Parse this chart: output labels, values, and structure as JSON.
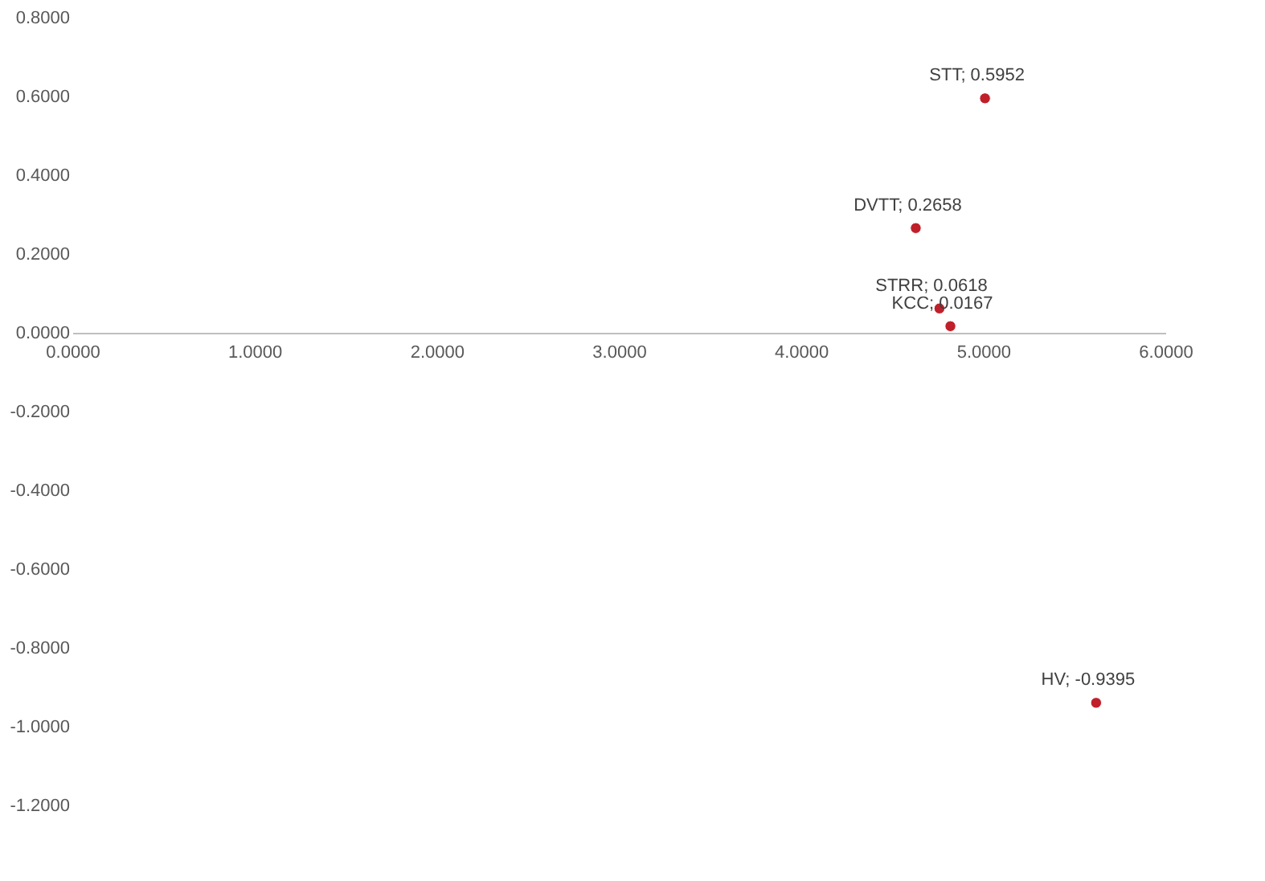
{
  "chart_data": {
    "type": "scatter",
    "x": [
      4.63,
      5.01,
      4.76,
      4.82,
      5.62
    ],
    "series": [
      {
        "color": "#c0202a",
        "values": [
          0.2658,
          0.5952,
          0.0618,
          0.0167,
          -0.9395
        ]
      }
    ],
    "annotations": [
      {
        "text": "DVTT; 0.2658",
        "x": 4.63,
        "y": 0.2658
      },
      {
        "text": "STT; 0.5952",
        "x": 5.01,
        "y": 0.5952
      },
      {
        "text": "STRR; 0.0618",
        "x": 4.76,
        "y": 0.0618
      },
      {
        "text": "KCC; 0.0167",
        "x": 4.82,
        "y": 0.0167
      },
      {
        "text": "HV; -0.9395",
        "x": 5.62,
        "y": -0.9395
      }
    ],
    "xlim": [
      0,
      6
    ],
    "ylim": [
      -1.2,
      0.8
    ],
    "xticks": [
      {
        "value": 0,
        "label": "0.0000"
      },
      {
        "value": 1,
        "label": "1.0000"
      },
      {
        "value": 2,
        "label": "2.0000"
      },
      {
        "value": 3,
        "label": "3.0000"
      },
      {
        "value": 4,
        "label": "4.0000"
      },
      {
        "value": 5,
        "label": "5.0000"
      },
      {
        "value": 6,
        "label": "6.0000"
      }
    ],
    "yticks": [
      {
        "value": -1.2,
        "label": "-1.2000"
      },
      {
        "value": -1.0,
        "label": "-1.0000"
      },
      {
        "value": -0.8,
        "label": "-0.8000"
      },
      {
        "value": -0.6,
        "label": "-0.6000"
      },
      {
        "value": -0.4,
        "label": "-0.4000"
      },
      {
        "value": -0.2,
        "label": "-0.2000"
      },
      {
        "value": 0,
        "label": "0.0000"
      },
      {
        "value": 0.2,
        "label": "0.2000"
      },
      {
        "value": 0.4,
        "label": "0.4000"
      },
      {
        "value": 0.6,
        "label": "0.6000"
      },
      {
        "value": 0.8,
        "label": "0.8000"
      }
    ],
    "grid": false,
    "marker": "circle"
  }
}
